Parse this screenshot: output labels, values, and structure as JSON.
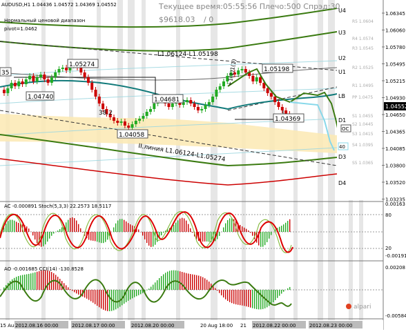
{
  "symbol_line": "AUDUSD,H1  1.04436 1.04572 1.04369 1.04552",
  "indicator_title": "Нормальный ценовой диапазон",
  "pivot_label": "pivot=1.0462",
  "server_time_label": "Текущее время:05:55:56 Плечо:500 Спрэд:30",
  "account_value": "$9618.03",
  "account_extra": "/ 0",
  "current_price": "1.04552",
  "price_axis": [
    "1.06345",
    "1.06060",
    "1.05780",
    "1.05495",
    "1.05215",
    "1.04930",
    "1.04650",
    "1.04365",
    "1.04085",
    "1.03800",
    "1.03520",
    "1.03235"
  ],
  "level_labels": [
    "U4",
    "U3",
    "U2",
    "U1",
    "LB",
    "D1",
    "D3",
    "D4"
  ],
  "resistance_labels": [
    "R5 1.0604",
    "R4 1.0574",
    "R3 1.0545",
    "R2 1.0525",
    "R1 1.0495",
    "PP 1.0475",
    "S1 1.0455",
    "S2 1.0445",
    "S3 1.0415",
    "S4 1.0395",
    "S5 1.0365"
  ],
  "chart_labels": {
    "price_a": "1.05274",
    "price_b": "1.04740",
    "price_c": "1.04681",
    "price_d": "1.04058",
    "price_e": "1.05198",
    "price_f": "1.04369",
    "fib": "38.2",
    "trend_top": "L1.06124-L1.05198",
    "trend_bottom": "II.линия L1.06124-L1.05274",
    "left_stub": "35",
    "wave": "+1(1)1(1)",
    "oc_tag": "OC",
    "ao_tag": "40"
  },
  "ac_panel": {
    "title": "AC -0.000891  Stoch(5,3,3) 22.2573 18.5117",
    "axis": [
      "0.00163",
      "80",
      "20",
      "-0.00191"
    ]
  },
  "ao_panel": {
    "title": "AO -0.001685  CCI(14) -130.8528",
    "axis": [
      "0.00208",
      "-0.00584"
    ]
  },
  "time_axis": [
    "15 Au",
    "2012.08.16 00:00",
    "2012.08.17 00:00",
    "2012.08.20 00:00",
    "20 Aug 18:00",
    "21",
    "2012.08.22 00:00",
    "2012.08.23 00:00"
  ],
  "watermark": "alpari",
  "colors": {
    "candle_up": "#22aa22",
    "candle_down": "#cc0000",
    "ma_teal": "#117a7a",
    "envelope_green": "#3a7a10",
    "envelope_red": "#cc0000",
    "band_fill": "#fbe9b3",
    "stripe": "#dcdcdc"
  }
}
